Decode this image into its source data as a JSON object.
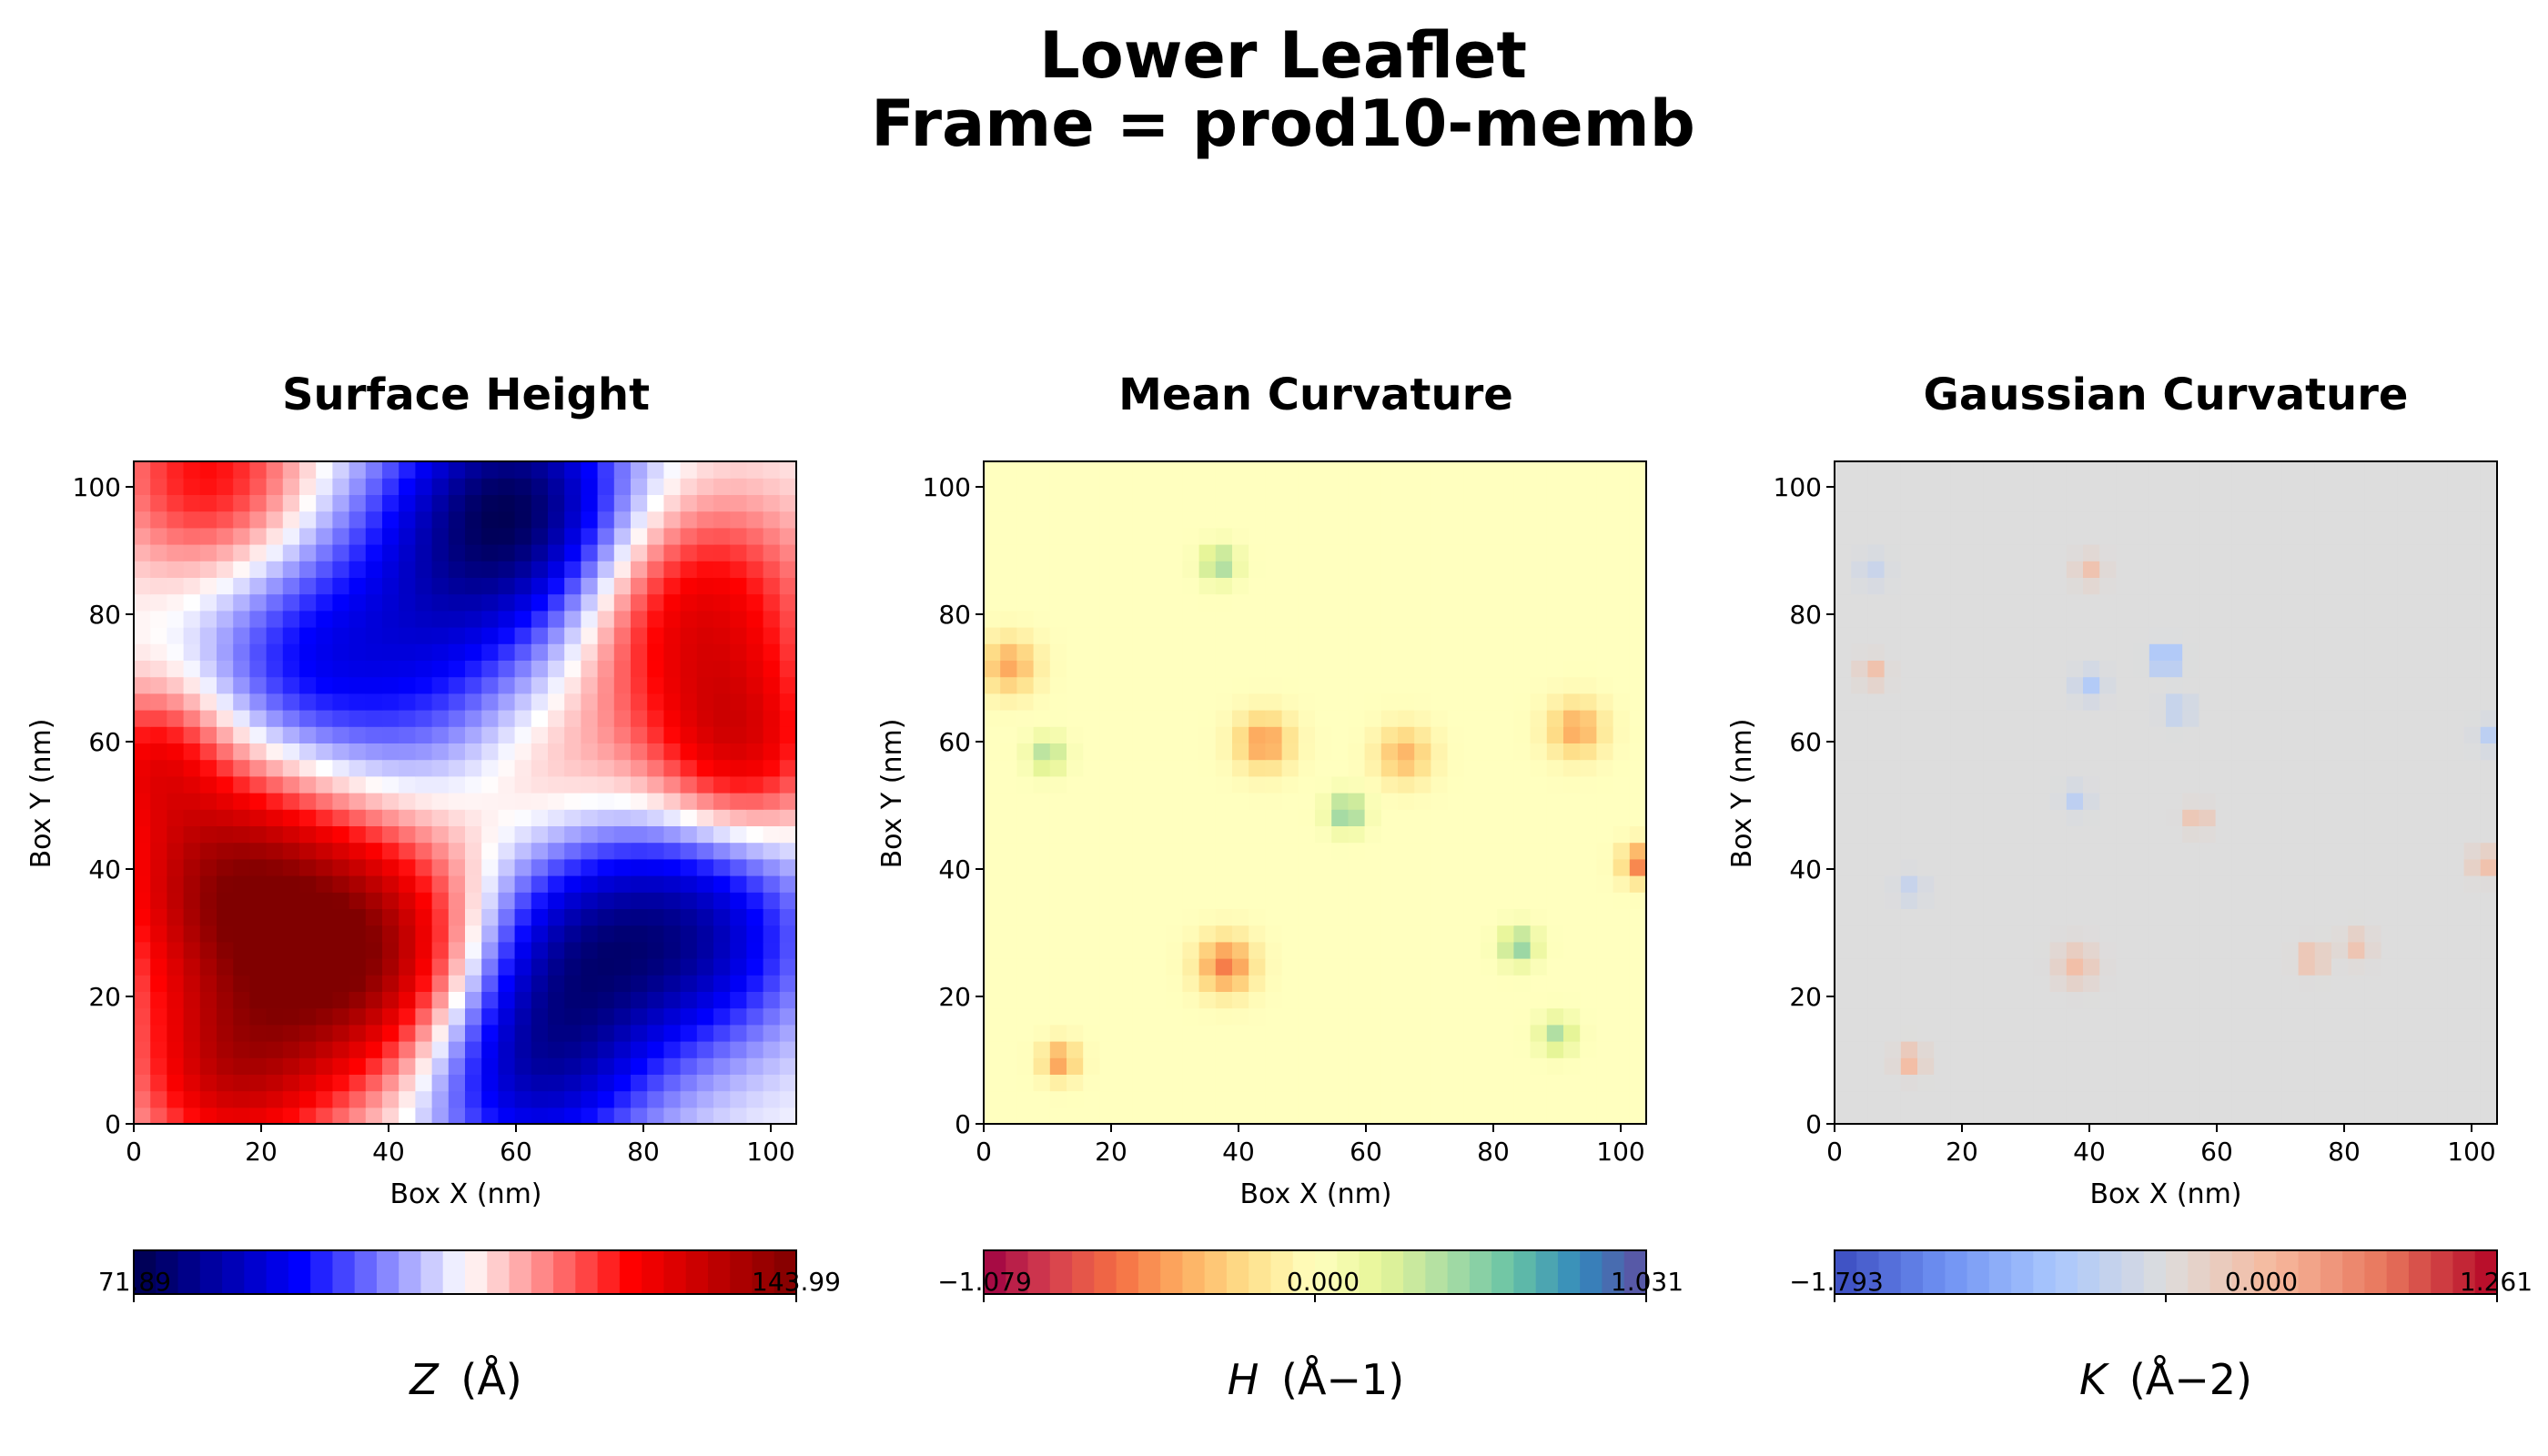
{
  "figure": {
    "suptitle_line1": "Lower Leaflet",
    "suptitle_line2": "Frame = prod10-memb"
  },
  "chart_data": [
    {
      "type": "heatmap",
      "title": "Surface Height",
      "xlabel": "Box X (nm)",
      "ylabel": "Box Y (nm)",
      "xlim": [
        0,
        104
      ],
      "ylim": [
        0,
        104
      ],
      "xticks": [
        "0",
        "20",
        "40",
        "60",
        "80",
        "100"
      ],
      "yticks": [
        "0",
        "20",
        "40",
        "60",
        "80",
        "100"
      ],
      "colormap": "seismic",
      "colors": [
        "#00004c",
        "#0000ff",
        "#ffffff",
        "#ff0000",
        "#800000"
      ],
      "colorbar": {
        "min": 71.89,
        "max": 143.99,
        "min_label": "71.89",
        "max_label": "143.99",
        "label_var": "Z",
        "label_unit": "(Å)"
      },
      "features": [
        {
          "x": 60,
          "y": 97,
          "value": 76,
          "spread": 13
        },
        {
          "x": 42,
          "y": 75,
          "value": 90,
          "spread": 16
        },
        {
          "x": 24,
          "y": 72,
          "value": 100,
          "spread": 10
        },
        {
          "x": 88,
          "y": 30,
          "value": 84,
          "spread": 13
        },
        {
          "x": 62,
          "y": 10,
          "value": 82,
          "spread": 13
        },
        {
          "x": 68,
          "y": 30,
          "value": 92,
          "spread": 12
        },
        {
          "x": 36,
          "y": 26,
          "value": 142,
          "spread": 14
        },
        {
          "x": 14,
          "y": 38,
          "value": 136,
          "spread": 13
        },
        {
          "x": 15,
          "y": 8,
          "value": 130,
          "spread": 11
        },
        {
          "x": 88,
          "y": 80,
          "value": 130,
          "spread": 13
        },
        {
          "x": 95,
          "y": 58,
          "value": 128,
          "spread": 10
        },
        {
          "x": 12,
          "y": 102,
          "value": 126,
          "spread": 11
        },
        {
          "x": 3,
          "y": 58,
          "value": 123,
          "spread": 8
        },
        {
          "x": 65,
          "y": 55,
          "value": 115,
          "spread": 11
        }
      ]
    },
    {
      "type": "heatmap",
      "title": "Mean Curvature",
      "xlabel": "Box X (nm)",
      "ylabel": "Box Y (nm)",
      "xlim": [
        0,
        104
      ],
      "ylim": [
        0,
        104
      ],
      "xticks": [
        "0",
        "20",
        "40",
        "60",
        "80",
        "100"
      ],
      "yticks": [
        "0",
        "20",
        "40",
        "60",
        "80",
        "100"
      ],
      "colormap": "Spectral",
      "colors": [
        "#9e0142",
        "#d53e4f",
        "#f46d43",
        "#fdae61",
        "#fee08b",
        "#ffffbf",
        "#e6f598",
        "#abdda4",
        "#66c2a5",
        "#3288bd",
        "#5e4fa2"
      ],
      "colorbar": {
        "min": -1.079,
        "max": 1.031,
        "mid": 0.0,
        "min_label": "−1.079",
        "mid_label": "0.000",
        "max_label": "1.031",
        "label_var": "H",
        "label_unit": "(Å−1)"
      },
      "features": [
        {
          "x": 38,
          "y": 25,
          "value": -0.6,
          "spread": 3
        },
        {
          "x": 44,
          "y": 60,
          "value": -0.5,
          "spread": 3
        },
        {
          "x": 66,
          "y": 58,
          "value": -0.4,
          "spread": 3
        },
        {
          "x": 93,
          "y": 62,
          "value": -0.45,
          "spread": 3
        },
        {
          "x": 103,
          "y": 41,
          "value": -0.6,
          "spread": 2
        },
        {
          "x": 12,
          "y": 10,
          "value": -0.5,
          "spread": 2
        },
        {
          "x": 4,
          "y": 72,
          "value": -0.45,
          "spread": 3
        },
        {
          "x": 57,
          "y": 49,
          "value": 0.55,
          "spread": 2
        },
        {
          "x": 37,
          "y": 88,
          "value": 0.45,
          "spread": 2
        },
        {
          "x": 84,
          "y": 28,
          "value": 0.5,
          "spread": 2
        },
        {
          "x": 10,
          "y": 58,
          "value": 0.4,
          "spread": 2
        },
        {
          "x": 90,
          "y": 14,
          "value": 0.4,
          "spread": 2
        }
      ]
    },
    {
      "type": "heatmap",
      "title": "Gaussian Curvature",
      "xlabel": "Box X (nm)",
      "ylabel": "Box Y (nm)",
      "xlim": [
        0,
        104
      ],
      "ylim": [
        0,
        104
      ],
      "xticks": [
        "0",
        "20",
        "40",
        "60",
        "80",
        "100"
      ],
      "yticks": [
        "0",
        "20",
        "40",
        "60",
        "80",
        "100"
      ],
      "colormap": "coolwarm",
      "colors": [
        "#3b4cc0",
        "#6f92f3",
        "#aac7fd",
        "#dddddd",
        "#f7b89c",
        "#e7745b",
        "#b40426"
      ],
      "colorbar": {
        "min": -1.793,
        "max": 1.261,
        "mid": 0.0,
        "min_label": "−1.793",
        "mid_label": "0.000",
        "max_label": "1.261",
        "label_var": "K",
        "label_unit": "(Å−2)"
      },
      "features": [
        {
          "x": 52,
          "y": 73,
          "value": -1.2,
          "spread": 1.3
        },
        {
          "x": 40,
          "y": 69,
          "value": -0.5,
          "spread": 1.5
        },
        {
          "x": 54,
          "y": 65,
          "value": -0.45,
          "spread": 1.4
        },
        {
          "x": 38,
          "y": 51,
          "value": -0.4,
          "spread": 1.3
        },
        {
          "x": 103,
          "y": 61,
          "value": -0.4,
          "spread": 1.4
        },
        {
          "x": 12,
          "y": 37,
          "value": -0.3,
          "spread": 1.4
        },
        {
          "x": 6,
          "y": 87,
          "value": -0.25,
          "spread": 1.6
        },
        {
          "x": 57,
          "y": 48,
          "value": 0.35,
          "spread": 1.3
        },
        {
          "x": 75,
          "y": 26,
          "value": 0.45,
          "spread": 1.4
        },
        {
          "x": 12,
          "y": 10,
          "value": 0.45,
          "spread": 1.4
        },
        {
          "x": 38,
          "y": 25,
          "value": 0.35,
          "spread": 2
        },
        {
          "x": 102,
          "y": 41,
          "value": 0.4,
          "spread": 1.4
        },
        {
          "x": 6,
          "y": 71,
          "value": 0.35,
          "spread": 1.4
        },
        {
          "x": 40,
          "y": 87,
          "value": 0.3,
          "spread": 1.5
        },
        {
          "x": 82,
          "y": 28,
          "value": 0.3,
          "spread": 1.5
        }
      ]
    }
  ]
}
